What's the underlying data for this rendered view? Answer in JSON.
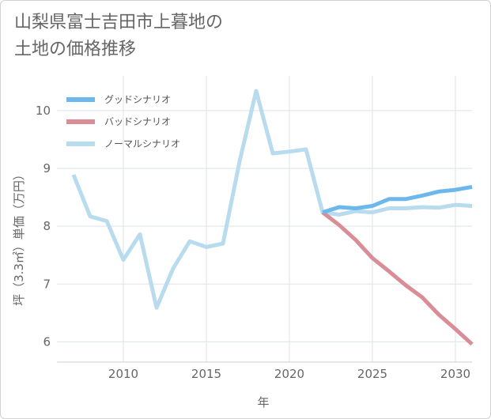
{
  "header": {
    "title_line1": "山梨県富士吉田市上暮地の",
    "title_line2": "土地の価格推移"
  },
  "chart_data": {
    "type": "line",
    "title": "山梨県富士吉田市上暮地の土地の価格推移",
    "xlabel": "年",
    "ylabel": "坪（3.3㎡）単価（万円）",
    "xlim": [
      2006,
      2031
    ],
    "ylim": [
      5.65,
      10.6
    ],
    "xticks": [
      2010,
      2015,
      2020,
      2025,
      2030
    ],
    "yticks": [
      6,
      7,
      8,
      9,
      10
    ],
    "grid": true,
    "legend_position": "top-left",
    "series": [
      {
        "name": "グッドシナリオ",
        "color": "#6cb8ed",
        "x": [
          2022,
          2023,
          2024,
          2025,
          2026,
          2027,
          2028,
          2029,
          2030,
          2031
        ],
        "values": [
          8.24,
          8.33,
          8.31,
          8.35,
          8.47,
          8.47,
          8.53,
          8.6,
          8.63,
          8.68
        ]
      },
      {
        "name": "バッドシナリオ",
        "color": "#d98d96",
        "x": [
          2022,
          2023,
          2024,
          2025,
          2026,
          2027,
          2028,
          2029,
          2030,
          2031
        ],
        "values": [
          8.24,
          8.02,
          7.76,
          7.45,
          7.22,
          6.98,
          6.77,
          6.47,
          6.22,
          5.96
        ]
      },
      {
        "name": "ノーマルシナリオ",
        "color": "#b8dcee",
        "x": [
          2007,
          2008,
          2009,
          2010,
          2011,
          2012,
          2013,
          2014,
          2015,
          2016,
          2017,
          2018,
          2019,
          2020,
          2021,
          2022,
          2023,
          2024,
          2025,
          2026,
          2027,
          2028,
          2029,
          2030,
          2031
        ],
        "values": [
          8.89,
          8.17,
          8.09,
          7.42,
          7.86,
          6.59,
          7.27,
          7.74,
          7.64,
          7.7,
          9.12,
          10.34,
          9.26,
          9.29,
          9.33,
          8.24,
          8.2,
          8.26,
          8.24,
          8.31,
          8.31,
          8.33,
          8.32,
          8.37,
          8.35
        ]
      }
    ]
  }
}
